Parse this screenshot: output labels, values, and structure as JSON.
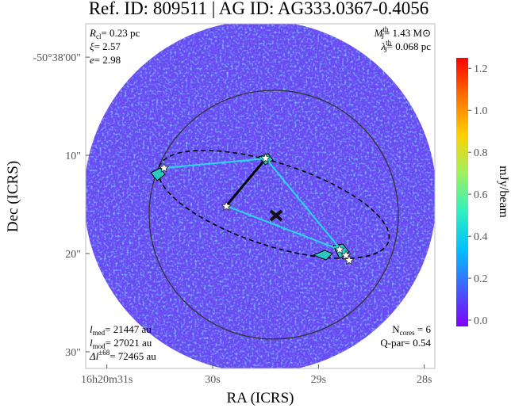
{
  "chart_data": {
    "type": "image",
    "title": "Ref. ID: 809511 | AG ID: AG333.0367-0.4056",
    "x_label": "RA (ICRS)",
    "y_label": "Dec (ICRS)",
    "colorbar_label": "mJy/beam",
    "xlim": [
      31.2,
      27.9
    ],
    "xticks": [
      {
        "value": 31,
        "label": "16h20m31s"
      },
      {
        "value": 30,
        "label": "30s"
      },
      {
        "value": 29,
        "label": "29s"
      },
      {
        "value": 28,
        "label": "28s"
      }
    ],
    "ylim": [
      -3.4,
      31.7
    ],
    "yticks": [
      {
        "value": 0,
        "label": "-50°38'00\""
      },
      {
        "value": 10,
        "label": "10\""
      },
      {
        "value": 20,
        "label": "20\""
      },
      {
        "value": 30,
        "label": "30\""
      }
    ],
    "clim": [
      -0.03,
      1.25
    ],
    "cticks": [
      {
        "value": 0,
        "label": "0.0"
      },
      {
        "value": 0.2,
        "label": "0.2"
      },
      {
        "value": 0.4,
        "label": "0.4"
      },
      {
        "value": 0.6,
        "label": "0.6"
      },
      {
        "value": 0.8,
        "label": "0.8"
      },
      {
        "value": 1.0,
        "label": "1.0"
      },
      {
        "value": 1.2,
        "label": "1.2"
      }
    ],
    "colormap": [
      "#7f00ff",
      "#4060ff",
      "#00c0ff",
      "#30f0c0",
      "#a0f060",
      "#ffd000",
      "#ff7000",
      "#ff0000"
    ],
    "cores": {
      "x": [
        30.46,
        29.87,
        29.5,
        28.8,
        28.74,
        28.71
      ],
      "y": [
        11.3,
        15.2,
        10.3,
        19.6,
        20.2,
        20.7
      ]
    },
    "annotations_top_left": [
      [
        {
          "t": "R",
          "s": "i"
        },
        {
          "t": "cl",
          "s": "sub"
        },
        {
          "t": "= 0.23 pc"
        }
      ],
      [
        {
          "t": "ξ",
          "s": "i"
        },
        {
          "t": "= 2.57"
        }
      ],
      [
        {
          "t": "e",
          "s": "i"
        },
        {
          "t": "= 2.98"
        }
      ]
    ],
    "annotations_top_right": [
      [
        {
          "t": "M",
          "s": "i"
        },
        {
          "t": "th",
          "s": "sup"
        },
        {
          "t": "J",
          "s": "sub"
        },
        {
          "t": "= 1.43 M⊙"
        }
      ],
      [
        {
          "t": "λ",
          "s": "i"
        },
        {
          "t": "th",
          "s": "sup"
        },
        {
          "t": "J",
          "s": "sub"
        },
        {
          "t": "= 0.068 pc"
        }
      ]
    ],
    "annotations_bottom_left": [
      [
        {
          "t": "l",
          "s": "i"
        },
        {
          "t": "med",
          "s": "sub"
        },
        {
          "t": "= 21447 au"
        }
      ],
      [
        {
          "t": "l",
          "s": "i"
        },
        {
          "t": "mod",
          "s": "sub"
        },
        {
          "t": "= 27021 au"
        }
      ],
      [
        {
          "t": "Δl",
          "s": "i"
        },
        {
          "t": "±68",
          "s": "sup"
        },
        {
          "t": "= 72465 au"
        }
      ]
    ],
    "annotations_bottom_right": [
      [
        {
          "t": "N"
        },
        {
          "t": "cores",
          "s": "sub"
        },
        {
          "t": " = 6"
        }
      ],
      [
        {
          "t": "Q-par= 0.54"
        }
      ]
    ]
  }
}
